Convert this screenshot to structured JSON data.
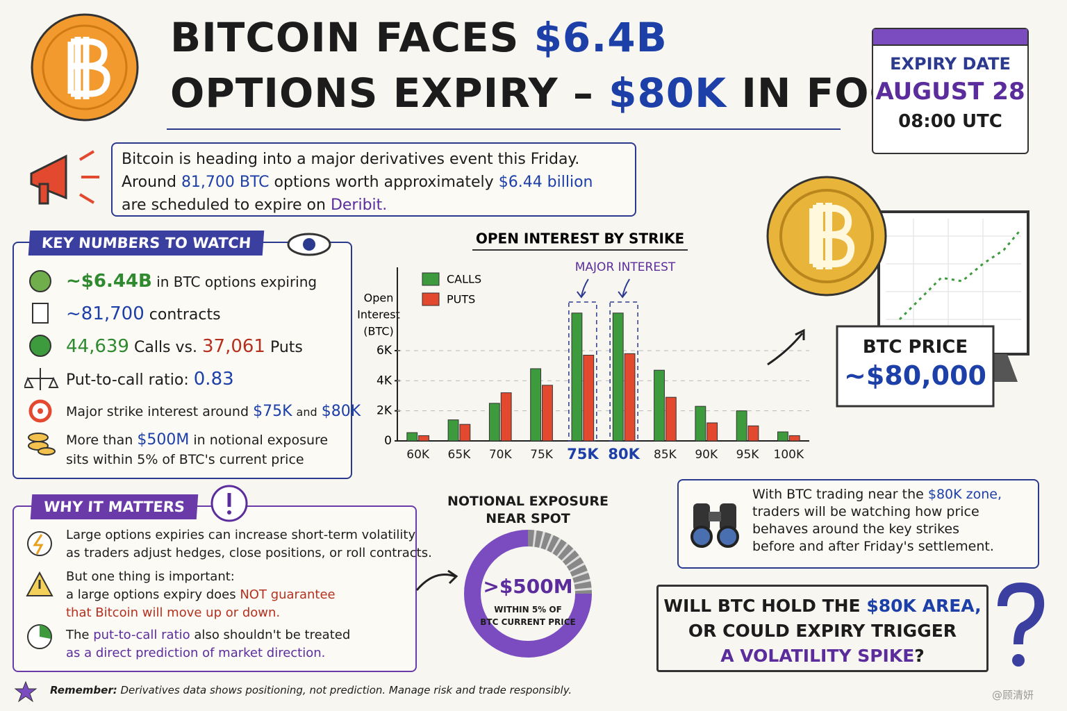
{
  "header": {
    "title_line1": [
      "BITCOIN FACES",
      "$6.4B"
    ],
    "title_line2": [
      "OPTIONS EXPIRY –",
      "$80K",
      "IN FOCUS"
    ]
  },
  "expiry": {
    "label": "EXPIRY DATE",
    "date": "AUGUST 28",
    "time": "08:00 UTC"
  },
  "intro": [
    "Bitcoin is heading into a major derivatives event this Friday.",
    "Around",
    "81,700 BTC",
    "options worth approximately",
    "$6.44 billion",
    "are scheduled to expire on",
    "Deribit."
  ],
  "key_numbers": {
    "title": "KEY NUMBERS TO WATCH",
    "items": [
      [
        "~$6.44B",
        "in BTC options expiring"
      ],
      [
        "~81,700",
        "contracts"
      ],
      [
        "44,639",
        "Calls vs.",
        "37,061",
        "Puts"
      ],
      [
        "Put-to-call ratio:",
        "0.83"
      ],
      [
        "Major strike interest around",
        "$75K",
        "and",
        "$80K"
      ],
      [
        "More than",
        "$500M",
        "in notional exposure",
        "sits within 5% of BTC's current price"
      ]
    ]
  },
  "chart_data": {
    "type": "bar",
    "title": "OPEN INTEREST BY STRIKE",
    "ylabel": [
      "Open",
      "Interest",
      "(BTC)"
    ],
    "annotation": "MAJOR INTEREST",
    "categories": [
      "60K",
      "65K",
      "70K",
      "75K",
      "75K",
      "80K",
      "85K",
      "90K",
      "95K",
      "100K"
    ],
    "series": [
      {
        "name": "CALLS",
        "color": "#3d9a3d",
        "values": [
          550,
          1400,
          2500,
          4800,
          8500,
          8500,
          4700,
          2300,
          2000,
          600
        ]
      },
      {
        "name": "PUTS",
        "color": "#e2492e",
        "values": [
          350,
          1100,
          3200,
          3700,
          5700,
          5800,
          2900,
          1200,
          1000,
          350
        ]
      }
    ],
    "ylim": [
      0,
      9000
    ],
    "yticks": [
      0,
      {
        "value": 2000,
        "label": "2K"
      },
      {
        "value": 4000,
        "label": "4K"
      },
      {
        "value": 6000,
        "label": "6K"
      }
    ],
    "grid": true
  },
  "why": {
    "title": "WHY IT MATTERS",
    "items": [
      [
        "Large options expiries can increase short-term volatility",
        "as traders adjust hedges, close positions, or roll contracts."
      ],
      [
        "But one thing is important:",
        "a large options expiry does",
        "NOT guarantee",
        "that Bitcoin will move up or down."
      ],
      [
        "The",
        "put-to-call ratio",
        "also shouldn't be treated",
        "as a direct prediction of market direction."
      ]
    ]
  },
  "exposure": {
    "title": [
      "NOTIONAL EXPOSURE",
      "NEAR SPOT"
    ],
    "value": ">$500M",
    "caption": [
      "WITHIN 5% OF",
      "BTC CURRENT PRICE"
    ]
  },
  "price": {
    "label": "BTC PRICE",
    "value": "~$80,000"
  },
  "watch": [
    "With BTC trading near the",
    "$80K zone,",
    "traders will be watching how price",
    "behaves around the key strikes",
    "before and after Friday's settlement."
  ],
  "question": [
    "WILL BTC HOLD THE",
    "$80K AREA,",
    "OR COULD EXPIRY TRIGGER",
    "A VOLATILITY SPIKE",
    "?"
  ],
  "footer": [
    "Remember:",
    "Derivatives data shows positioning, not prediction.  Manage risk and trade responsibly."
  ],
  "watermark": "@顾清妍"
}
